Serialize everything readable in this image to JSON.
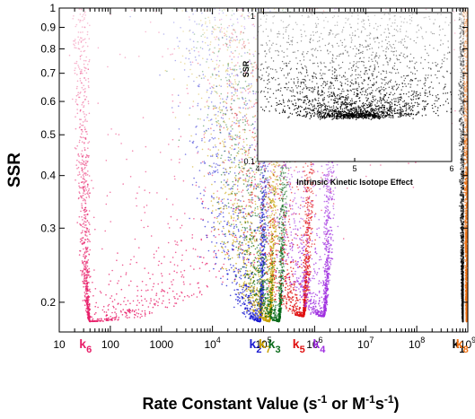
{
  "chart_data": [
    {
      "type": "scatter",
      "xlabel_parts": {
        "prefix": "Rate Constant Value (s",
        "sup1": "-1",
        "mid": " or M",
        "sup2": "-1",
        "mid2": "s",
        "sup3": "-1",
        "suffix": ")"
      },
      "ylabel": "SSR",
      "x_scale": "log",
      "y_scale": "log",
      "xlim": [
        10,
        1000000000
      ],
      "ylim": [
        0.17,
        1.0
      ],
      "x_ticks": [
        {
          "value": 10,
          "base": "10",
          "exp": ""
        },
        {
          "value": 100,
          "base": "100",
          "exp": ""
        },
        {
          "value": 1000,
          "base": "1000",
          "exp": ""
        },
        {
          "value": 10000,
          "base": "10",
          "exp": "4"
        },
        {
          "value": 100000,
          "base": "10",
          "exp": "5"
        },
        {
          "value": 1000000,
          "base": "10",
          "exp": "6"
        },
        {
          "value": 10000000,
          "base": "10",
          "exp": "7"
        },
        {
          "value": 100000000,
          "base": "10",
          "exp": "8"
        },
        {
          "value": 1000000000,
          "base": "10",
          "exp": "9"
        }
      ],
      "y_ticks": [
        {
          "value": 0.2,
          "label": "0.2"
        },
        {
          "value": 0.3,
          "label": "0.3"
        },
        {
          "value": 0.4,
          "label": "0.4"
        },
        {
          "value": 0.5,
          "label": "0.5"
        },
        {
          "value": 0.6,
          "label": "0.6"
        },
        {
          "value": 0.7,
          "label": "0.7"
        },
        {
          "value": 0.8,
          "label": "0.8"
        },
        {
          "value": 0.9,
          "label": "0.9"
        },
        {
          "value": 1.0,
          "label": "1"
        }
      ],
      "series": [
        {
          "name": "k6",
          "main": "k",
          "sub": "6",
          "color": "#e8206a",
          "best_x": 40,
          "min_ssr": 0.18,
          "spread_low": 0.45,
          "spread_high": 10
        },
        {
          "name": "k2",
          "main": "k",
          "sub": "2",
          "color": "#1a1ad0",
          "best_x": 85000,
          "min_ssr": 0.18,
          "spread_low": 2.4,
          "spread_high": 0.28
        },
        {
          "name": "k7",
          "main": "k",
          "sub": "7",
          "color": "#c8a000",
          "best_x": 130000,
          "min_ssr": 0.18,
          "spread_low": 2.2,
          "spread_high": 0.3
        },
        {
          "name": "k3",
          "main": "k",
          "sub": "3",
          "color": "#0a6a1a",
          "best_x": 200000,
          "min_ssr": 0.18,
          "spread_low": 2.2,
          "spread_high": 0.3
        },
        {
          "name": "k5",
          "main": "k",
          "sub": "5",
          "color": "#e01010",
          "best_x": 600000,
          "min_ssr": 0.185,
          "spread_low": 2.5,
          "spread_high": 0.4
        },
        {
          "name": "k4",
          "main": "k",
          "sub": "4",
          "color": "#a030e0",
          "best_x": 1500000,
          "min_ssr": 0.185,
          "spread_low": 2.5,
          "spread_high": 0.4
        },
        {
          "name": "k1",
          "main": "k",
          "sub": "1",
          "color": "#000000",
          "best_x": 800000000,
          "min_ssr": 0.18,
          "spread_low": 0.1,
          "spread_high": 0.03
        },
        {
          "name": "k8",
          "main": "k",
          "sub": "8",
          "color": "#f07010",
          "best_x": 950000000,
          "min_ssr": 0.18,
          "spread_low": 0.08,
          "spread_high": 0.02
        }
      ],
      "legend": "labels below each cloud"
    },
    {
      "type": "scatter",
      "title": "",
      "xlabel": "Intrinsic Kinetic Isotope Effect",
      "ylabel": "SSR",
      "y_scale": "log",
      "xlim": [
        4,
        6
      ],
      "ylim": [
        0.1,
        1
      ],
      "x_ticks": [
        "4",
        "5",
        "6"
      ],
      "y_ticks": [
        "0.1",
        "1"
      ],
      "color": "#000000",
      "best_x": 5.0,
      "min_ssr": 0.2
    }
  ]
}
